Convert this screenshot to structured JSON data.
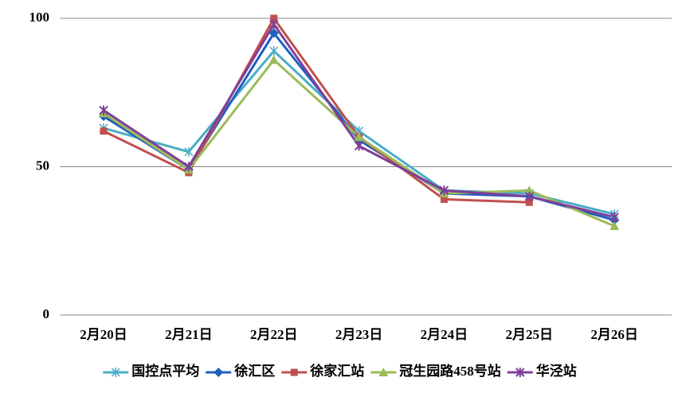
{
  "chart_data": {
    "type": "line",
    "categories": [
      "2月20日",
      "2月21日",
      "2月22日",
      "2月23日",
      "2月24日",
      "2月25日",
      "2月26日"
    ],
    "series": [
      {
        "name": "国控点平均",
        "color": "#4bacc6",
        "marker": "star",
        "values": [
          63,
          55,
          89,
          62,
          42,
          41,
          34
        ]
      },
      {
        "name": "徐汇区",
        "color": "#1f5fbf",
        "marker": "diamond",
        "values": [
          67,
          49,
          95,
          59,
          41,
          40,
          32
        ]
      },
      {
        "name": "徐家汇站",
        "color": "#c0504d",
        "marker": "square",
        "values": [
          62,
          48,
          100,
          60,
          39,
          38,
          null
        ]
      },
      {
        "name": "冠生园路458号站",
        "color": "#9bbb59",
        "marker": "triangle",
        "values": [
          68,
          49,
          86,
          60,
          41,
          42,
          30
        ]
      },
      {
        "name": "华泾站",
        "color": "#7f3f98",
        "marker": "x",
        "values": [
          69,
          50,
          98,
          57,
          42,
          40,
          33
        ]
      }
    ],
    "ylim": [
      0,
      100
    ],
    "yticks": [
      0,
      50,
      100
    ],
    "grid": true,
    "legend": "bottom"
  }
}
